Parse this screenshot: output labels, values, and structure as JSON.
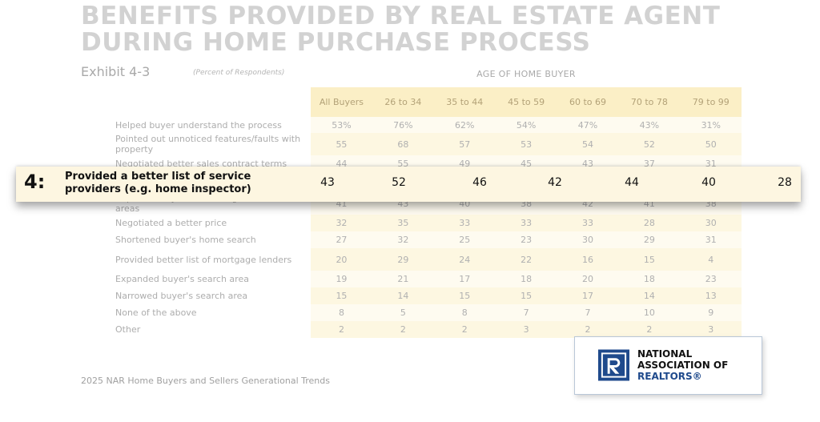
{
  "title": "BENEFITS PROVIDED BY REAL ESTATE AGENT DURING HOME PURCHASE PROCESS",
  "exhibit": "Exhibit 4-3",
  "percent_note": "(Percent of Respondents)",
  "age_header": "AGE OF HOME BUYER",
  "columns": [
    "All Buyers",
    "26 to 34",
    "35 to 44",
    "45 to 59",
    "60 to 69",
    "70 to 78",
    "79 to 99"
  ],
  "rows": [
    {
      "label": "Helped buyer understand the process",
      "values": [
        "53%",
        "76%",
        "62%",
        "54%",
        "47%",
        "43%",
        "31%"
      ]
    },
    {
      "label": "Pointed out unnoticed features/faults with property",
      "values": [
        "55",
        "68",
        "57",
        "53",
        "54",
        "52",
        "50"
      ]
    },
    {
      "label": "Negotiated better sales contract terms",
      "values": [
        "44",
        "55",
        "49",
        "45",
        "43",
        "37",
        "31"
      ]
    },
    {
      "label": "Provided a better list of service providers (e.g. home inspector)",
      "values": [
        "43",
        "52",
        "46",
        "42",
        "44",
        "40",
        "28"
      ]
    },
    {
      "label": "Improved buyer's knowledge of search areas",
      "values": [
        "41",
        "43",
        "40",
        "38",
        "42",
        "41",
        "38"
      ]
    },
    {
      "label": "Negotiated a better price",
      "values": [
        "32",
        "35",
        "33",
        "33",
        "33",
        "28",
        "30"
      ]
    },
    {
      "label": "Shortened buyer's home search",
      "values": [
        "27",
        "32",
        "25",
        "23",
        "30",
        "29",
        "31"
      ]
    },
    {
      "label": "Provided better list of mortgage lenders",
      "values": [
        "20",
        "29",
        "24",
        "22",
        "16",
        "15",
        "4"
      ]
    },
    {
      "label": "Expanded buyer's search area",
      "values": [
        "19",
        "21",
        "17",
        "18",
        "20",
        "18",
        "23"
      ]
    },
    {
      "label": "Narrowed buyer's search area",
      "values": [
        "15",
        "14",
        "15",
        "15",
        "17",
        "14",
        "13"
      ]
    },
    {
      "label": "None of the above",
      "values": [
        "8",
        "5",
        "8",
        "7",
        "7",
        "10",
        "9"
      ]
    },
    {
      "label": "Other",
      "values": [
        "2",
        "2",
        "2",
        "3",
        "2",
        "2",
        "3"
      ]
    }
  ],
  "callout": {
    "rank": "4:",
    "label": "Provided a better list of service providers (e.g. home inspector)",
    "values": [
      "43",
      "52",
      "46",
      "42",
      "44",
      "40",
      "28"
    ]
  },
  "source": "2025 NAR Home Buyers and Sellers Generational Trends",
  "nar": {
    "line1": "NATIONAL",
    "line2": "ASSOCIATION OF",
    "line3": "REALTORS®",
    "logo_icon": "realtor-r-logo-icon",
    "brand_color": "#1f4a8c"
  },
  "colors": {
    "header_band": "#fbefc6",
    "row_band": "#fefbf0",
    "callout_bg": "#fdf6e1"
  }
}
